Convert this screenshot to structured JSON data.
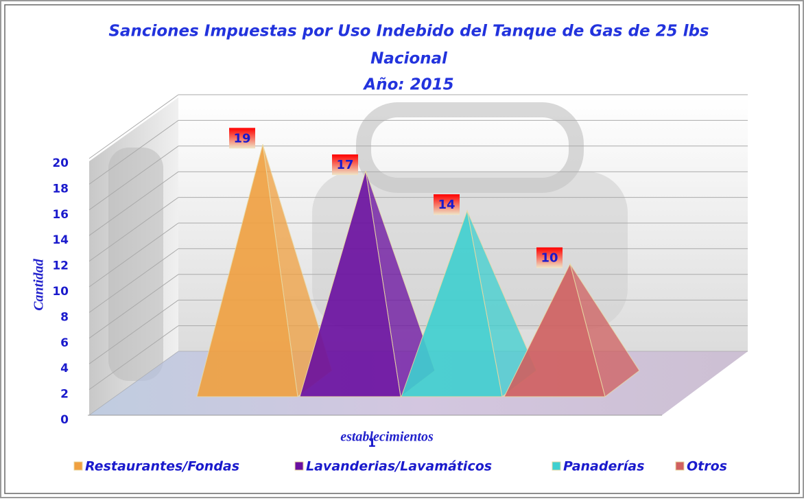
{
  "chart_data": {
    "type": "pyramid3d",
    "title": "Sanciones Impuestas por Uso Indebido del Tanque de Gas de 25 lbs",
    "subtitle": "Nacional",
    "subtitle2": "Año: 2015",
    "y_axis_label": "Cantidad",
    "x_axis_label": "establecimientos",
    "categories": [
      "1"
    ],
    "series": [
      {
        "name": "Restaurantes/Fondas",
        "color": "#f0a040",
        "values": [
          19
        ]
      },
      {
        "name": "Lavanderias/Lavamáticos",
        "color": "#6a0fa0",
        "values": [
          17
        ]
      },
      {
        "name": "Panaderías",
        "color": "#3fd0d0",
        "values": [
          14
        ]
      },
      {
        "name": "Otros",
        "color": "#d06060",
        "values": [
          10
        ]
      }
    ],
    "ylim": [
      0,
      20
    ],
    "yticks": [
      0,
      2,
      4,
      6,
      8,
      10,
      12,
      14,
      16,
      18,
      20
    ],
    "grid": true,
    "legend": "bottom"
  }
}
